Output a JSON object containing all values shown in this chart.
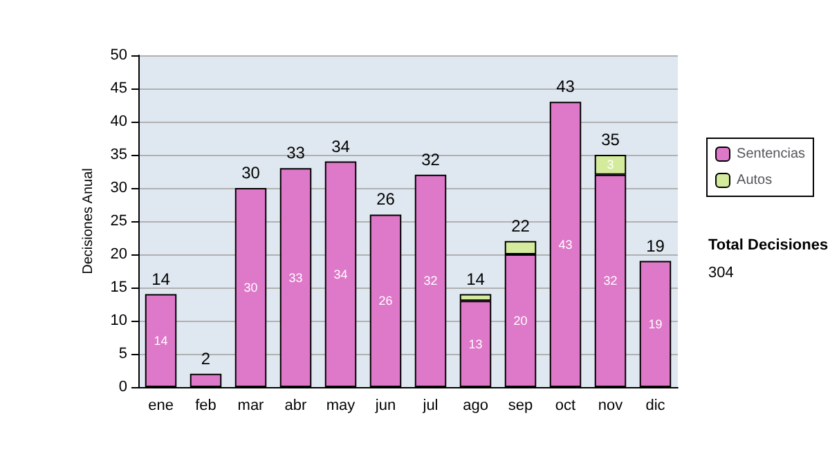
{
  "chart_data": {
    "type": "bar",
    "stacked": true,
    "ylabel": "Decisiones Anual",
    "categories": [
      "ene",
      "feb",
      "mar",
      "abr",
      "may",
      "jun",
      "jul",
      "ago",
      "sep",
      "oct",
      "nov",
      "dic"
    ],
    "series": [
      {
        "name": "Sentencias",
        "color": "#de78c8",
        "values": [
          14,
          2,
          30,
          33,
          34,
          26,
          32,
          13,
          20,
          43,
          32,
          19
        ],
        "value_labels": [
          "14",
          null,
          "30",
          "33",
          "34",
          "26",
          "32",
          "13",
          "20",
          "43",
          "32",
          "19"
        ]
      },
      {
        "name": "Autos",
        "color": "#d4ea9c",
        "values": [
          null,
          null,
          null,
          null,
          null,
          null,
          null,
          1,
          2,
          null,
          3,
          null
        ],
        "value_labels": [
          null,
          null,
          null,
          null,
          null,
          null,
          null,
          null,
          null,
          null,
          "3",
          null
        ]
      }
    ],
    "totals": [
      "14",
      "2",
      "30",
      "33",
      "34",
      "26",
      "32",
      "14",
      "22",
      "43",
      "35",
      "19"
    ],
    "ylim": [
      0,
      50
    ],
    "yticks": [
      0,
      5,
      10,
      15,
      20,
      25,
      30,
      35,
      40,
      45,
      50
    ],
    "grid": "y",
    "legend": "right",
    "annotations": [
      "Total Decisiones",
      "304"
    ]
  }
}
